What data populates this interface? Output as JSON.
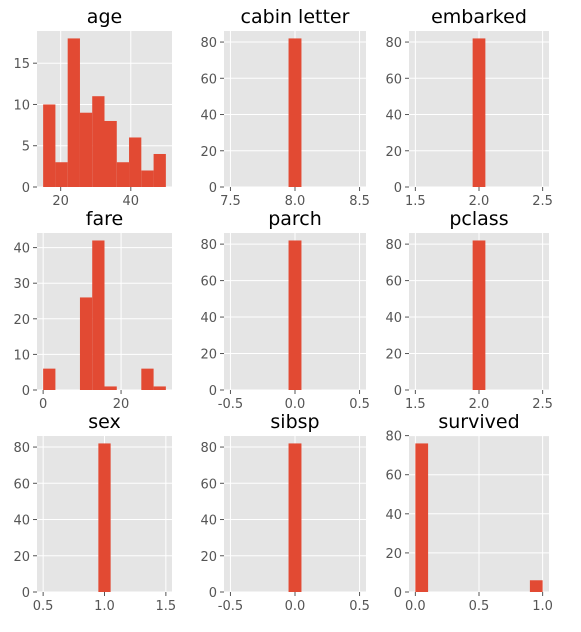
{
  "chart_data": [
    {
      "type": "bar",
      "title": "age",
      "bin_edges": [
        15,
        18.5,
        22,
        25.5,
        29,
        32.5,
        36,
        39.5,
        43,
        46.5,
        50
      ],
      "values": [
        10,
        3,
        18,
        9,
        11,
        8,
        3,
        6,
        2,
        4
      ],
      "xlim": [
        13.25,
        51.75
      ],
      "ylim": [
        0,
        18.9
      ],
      "xticks": [
        20,
        40
      ],
      "yticks": [
        0,
        5,
        10,
        15
      ],
      "grid": true
    },
    {
      "type": "bar",
      "title": "cabin letter",
      "bin_edges": [
        7.95,
        8.05
      ],
      "values": [
        82
      ],
      "xlim": [
        7.45,
        8.55
      ],
      "ylim": [
        0,
        86.1
      ],
      "xticks": [
        7.5,
        8.0,
        8.5
      ],
      "yticks": [
        0,
        20,
        40,
        60,
        80
      ],
      "grid": true
    },
    {
      "type": "bar",
      "title": "embarked",
      "bin_edges": [
        1.95,
        2.05
      ],
      "values": [
        82
      ],
      "xlim": [
        1.45,
        2.55
      ],
      "ylim": [
        0,
        86.1
      ],
      "xticks": [
        1.5,
        2.0,
        2.5
      ],
      "yticks": [
        0,
        20,
        40,
        60,
        80
      ],
      "grid": true
    },
    {
      "type": "bar",
      "title": "fare",
      "bin_edges": [
        0,
        3.15,
        6.3,
        9.45,
        12.6,
        15.75,
        18.9,
        22.05,
        25.2,
        28.35,
        31.5
      ],
      "values": [
        6,
        0,
        0,
        26,
        42,
        1,
        0,
        0,
        6,
        1
      ],
      "xlim": [
        -1.575,
        33.075
      ],
      "ylim": [
        0,
        44.1
      ],
      "xticks": [
        0,
        20
      ],
      "yticks": [
        0,
        10,
        20,
        30,
        40
      ],
      "grid": true
    },
    {
      "type": "bar",
      "title": "parch",
      "bin_edges": [
        -0.05,
        0.05
      ],
      "values": [
        82
      ],
      "xlim": [
        -0.55,
        0.55
      ],
      "ylim": [
        0,
        86.1
      ],
      "xticks": [
        -0.5,
        0.0,
        0.5
      ],
      "yticks": [
        0,
        20,
        40,
        60,
        80
      ],
      "grid": true
    },
    {
      "type": "bar",
      "title": "pclass",
      "bin_edges": [
        1.95,
        2.05
      ],
      "values": [
        82
      ],
      "xlim": [
        1.45,
        2.55
      ],
      "ylim": [
        0,
        86.1
      ],
      "xticks": [
        1.5,
        2.0,
        2.5
      ],
      "yticks": [
        0,
        20,
        40,
        60,
        80
      ],
      "grid": true
    },
    {
      "type": "bar",
      "title": "sex",
      "bin_edges": [
        0.95,
        1.05
      ],
      "values": [
        82
      ],
      "xlim": [
        0.45,
        1.55
      ],
      "ylim": [
        0,
        86.1
      ],
      "xticks": [
        0.5,
        1.0,
        1.5
      ],
      "yticks": [
        0,
        20,
        40,
        60,
        80
      ],
      "grid": true
    },
    {
      "type": "bar",
      "title": "sibsp",
      "bin_edges": [
        -0.05,
        0.05
      ],
      "values": [
        82
      ],
      "xlim": [
        -0.55,
        0.55
      ],
      "ylim": [
        0,
        86.1
      ],
      "xticks": [
        -0.5,
        0.0,
        0.5
      ],
      "yticks": [
        0,
        20,
        40,
        60,
        80
      ],
      "grid": true
    },
    {
      "type": "bar",
      "title": "survived",
      "bin_edges": [
        0,
        0.1,
        0.2,
        0.3,
        0.4,
        0.5,
        0.6,
        0.7,
        0.8,
        0.9,
        1.0
      ],
      "values": [
        76,
        0,
        0,
        0,
        0,
        0,
        0,
        0,
        0,
        6
      ],
      "xlim": [
        -0.05,
        1.05
      ],
      "ylim": [
        0,
        79.8
      ],
      "xticks": [
        0.0,
        0.5,
        1.0
      ],
      "yticks": [
        0,
        20,
        40,
        60,
        80
      ],
      "grid": true
    }
  ],
  "style": {
    "background": "#e5e5e5",
    "bar_color": "#e24a33",
    "grid_color": "#ffffff"
  }
}
